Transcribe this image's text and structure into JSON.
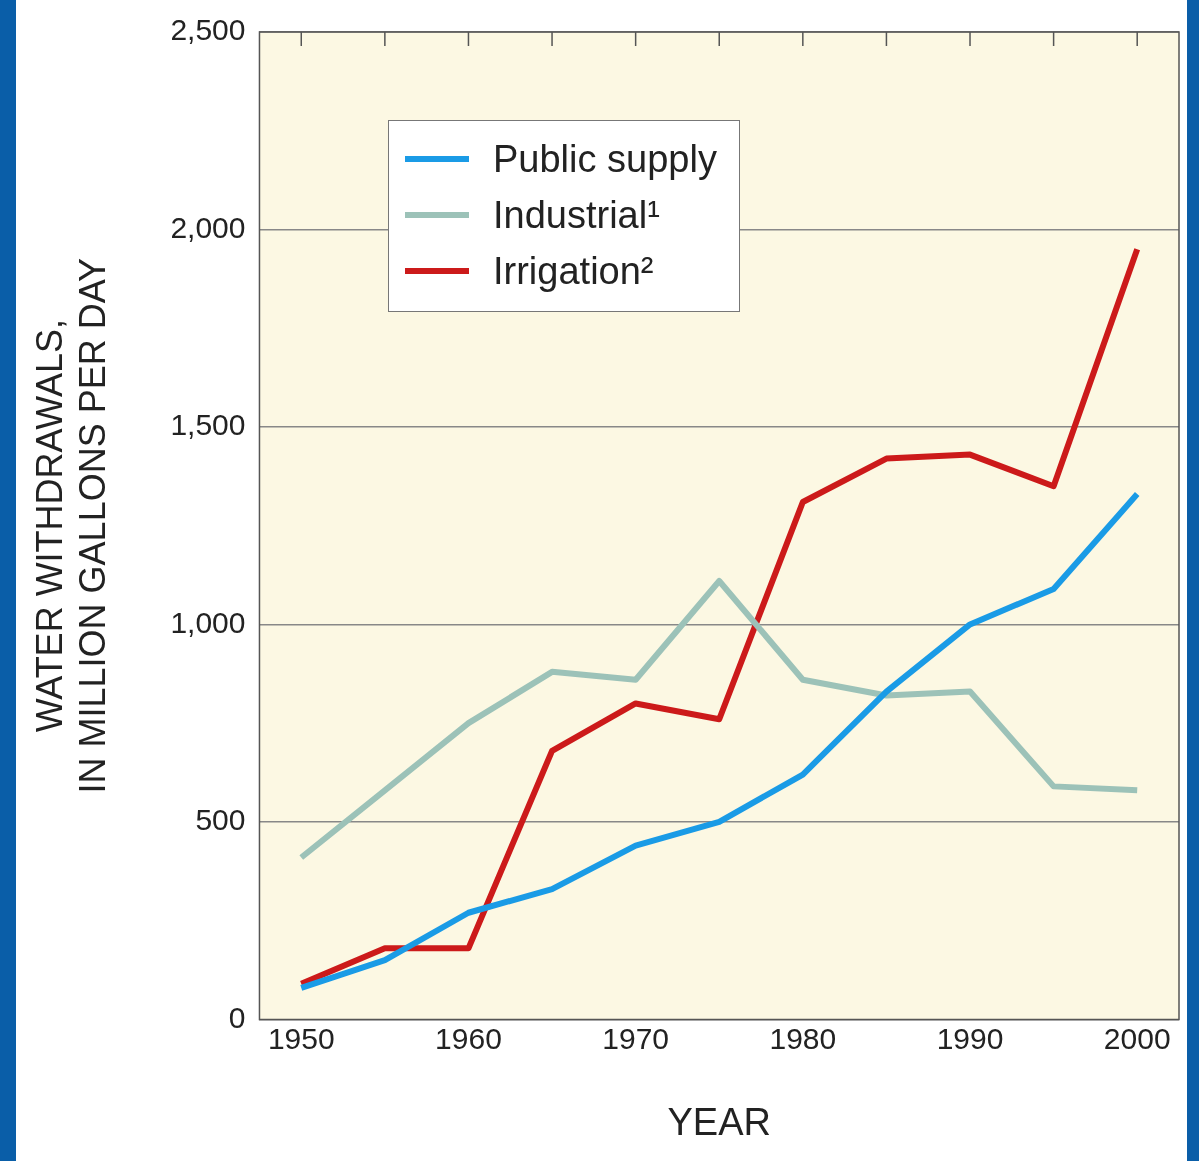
{
  "chart_data": {
    "type": "line",
    "xlabel": "YEAR",
    "ylabel": "WATER WITHDRAWALS,\nIN MILLION GALLONS PER DAY",
    "x": [
      1950,
      1955,
      1960,
      1965,
      1970,
      1975,
      1980,
      1985,
      1990,
      1995,
      2000
    ],
    "series": [
      {
        "name": "Public supply",
        "color": "#1a9be6",
        "values": [
          80,
          150,
          270,
          330,
          440,
          500,
          620,
          830,
          1000,
          1090,
          1330
        ]
      },
      {
        "name": "Industrial¹",
        "color": "#9cc2b8",
        "values": [
          410,
          580,
          750,
          880,
          860,
          1110,
          860,
          820,
          830,
          590,
          580
        ]
      },
      {
        "name": "Irrigation²",
        "color": "#cc1a1a",
        "values": [
          90,
          180,
          180,
          680,
          800,
          760,
          1310,
          1420,
          1430,
          1350,
          1950
        ]
      }
    ],
    "xlim": [
      1947.5,
      2002.5
    ],
    "xticks": [
      1950,
      {
        "value": 1955,
        "label": null
      },
      1960,
      {
        "value": 1965,
        "label": null
      },
      1970,
      {
        "value": 1975,
        "label": null
      },
      1980,
      {
        "value": 1985,
        "label": null
      },
      1990,
      {
        "value": 1995,
        "label": null
      },
      2000
    ],
    "ylim": [
      0,
      2500
    ],
    "yticks": [
      0,
      500,
      {
        "value": 1000,
        "label": "1,000"
      },
      {
        "value": 1500,
        "label": "1,500"
      },
      {
        "value": 2000,
        "label": "2,000"
      },
      {
        "value": 2500,
        "label": "2,500"
      }
    ],
    "grid": "y",
    "legend": "top left",
    "marker": "none",
    "line_style": "solid"
  }
}
